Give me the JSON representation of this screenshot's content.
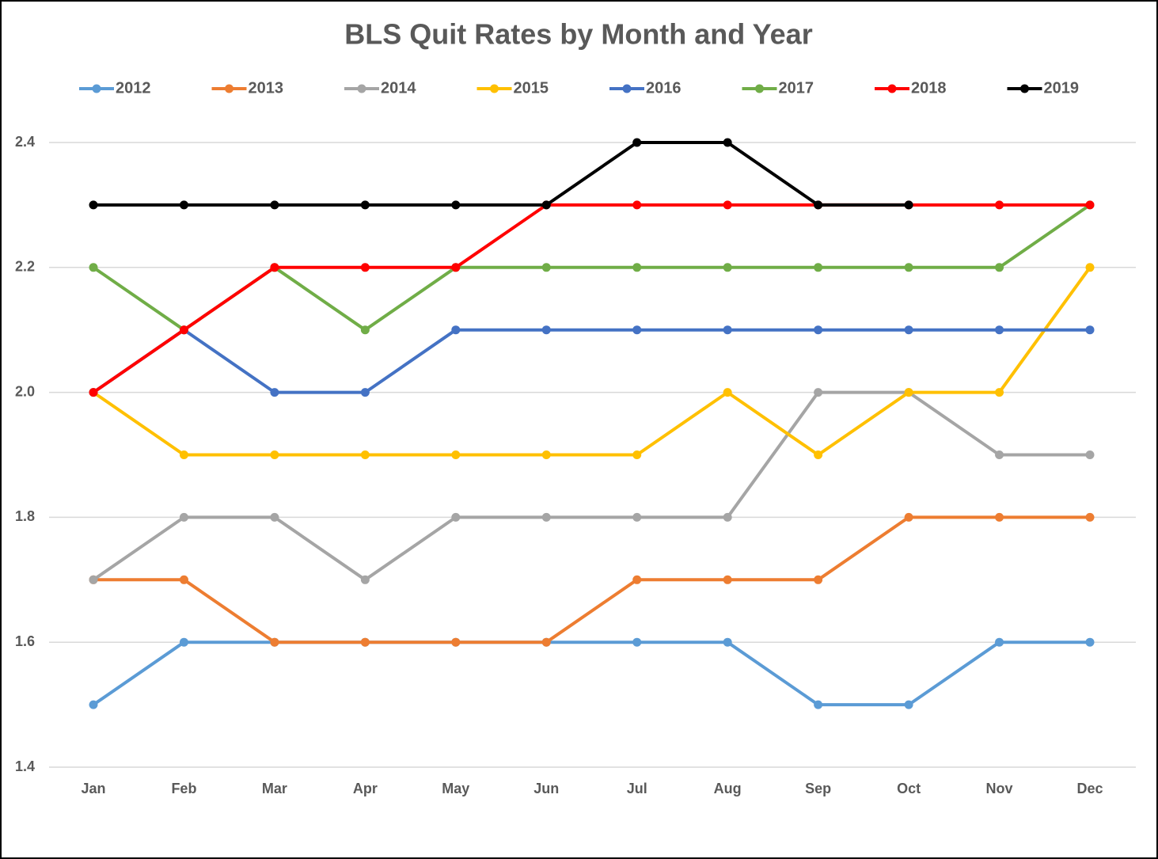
{
  "chart_data": {
    "type": "line",
    "title": "BLS Quit Rates by Month and Year",
    "categories": [
      "Jan",
      "Feb",
      "Mar",
      "Apr",
      "May",
      "Jun",
      "Jul",
      "Aug",
      "Sep",
      "Oct",
      "Nov",
      "Dec"
    ],
    "series": [
      {
        "name": "2012",
        "color": "#5b9bd5",
        "values": [
          1.5,
          1.6,
          1.6,
          1.6,
          1.6,
          1.6,
          1.6,
          1.6,
          1.5,
          1.5,
          1.6,
          1.6
        ]
      },
      {
        "name": "2013",
        "color": "#ed7d31",
        "values": [
          1.7,
          1.7,
          1.6,
          1.6,
          1.6,
          1.6,
          1.7,
          1.7,
          1.7,
          1.8,
          1.8,
          1.8
        ]
      },
      {
        "name": "2014",
        "color": "#a5a5a5",
        "values": [
          1.7,
          1.8,
          1.8,
          1.7,
          1.8,
          1.8,
          1.8,
          1.8,
          2.0,
          2.0,
          1.9,
          1.9
        ]
      },
      {
        "name": "2015",
        "color": "#ffc000",
        "values": [
          2.0,
          1.9,
          1.9,
          1.9,
          1.9,
          1.9,
          1.9,
          2.0,
          1.9,
          2.0,
          2.0,
          2.2
        ]
      },
      {
        "name": "2016",
        "color": "#4472c4",
        "values": [
          2.0,
          2.1,
          2.0,
          2.0,
          2.1,
          2.1,
          2.1,
          2.1,
          2.1,
          2.1,
          2.1,
          2.1
        ]
      },
      {
        "name": "2017",
        "color": "#70ad47",
        "values": [
          2.2,
          2.1,
          2.2,
          2.1,
          2.2,
          2.2,
          2.2,
          2.2,
          2.2,
          2.2,
          2.2,
          2.3
        ]
      },
      {
        "name": "2018",
        "color": "#ff0000",
        "values": [
          2.0,
          2.1,
          2.2,
          2.2,
          2.2,
          2.3,
          2.3,
          2.3,
          2.3,
          2.3,
          2.3,
          2.3
        ]
      },
      {
        "name": "2019",
        "color": "#000000",
        "values": [
          2.3,
          2.3,
          2.3,
          2.3,
          2.3,
          2.3,
          2.4,
          2.4,
          2.3,
          2.3,
          null,
          null
        ]
      }
    ],
    "ylim": [
      1.4,
      2.4
    ],
    "yticks": [
      1.4,
      1.6,
      1.8,
      {
        "value": 2,
        "label": "2.0"
      },
      2.2,
      2.4
    ],
    "grid": true,
    "legend": "top"
  }
}
